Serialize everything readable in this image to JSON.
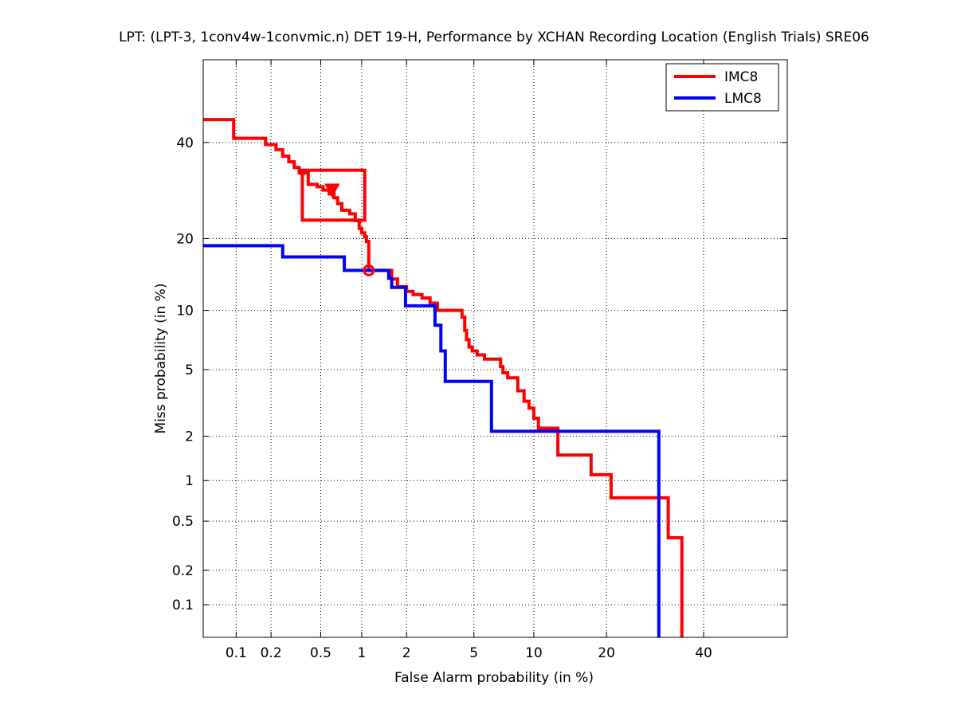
{
  "chart_data": {
    "type": "line",
    "title": "LPT: (LPT-3, 1conv4w-1convmic.n) DET 19-H,  Performance by XCHAN Recording Location (English Trials) SRE06",
    "xlabel": "False Alarm probability (in %)",
    "ylabel": "Miss probability (in %)",
    "x_scale": "probit",
    "y_scale": "probit",
    "xlim": [
      0.05,
      60
    ],
    "ylim": [
      0.05,
      60
    ],
    "grid": true,
    "legend_position": "top-right",
    "x_ticks": [
      {
        "value": 0.1,
        "label": "0.1"
      },
      {
        "value": 0.2,
        "label": "0.2"
      },
      {
        "value": 0.5,
        "label": "0.5"
      },
      {
        "value": 1,
        "label": "1"
      },
      {
        "value": 2,
        "label": "2"
      },
      {
        "value": 5,
        "label": "5"
      },
      {
        "value": 10,
        "label": "10"
      },
      {
        "value": 20,
        "label": "20"
      },
      {
        "value": 40,
        "label": "40"
      }
    ],
    "y_ticks": [
      {
        "value": 0.1,
        "label": "0.1"
      },
      {
        "value": 0.2,
        "label": "0.2"
      },
      {
        "value": 0.5,
        "label": "0.5"
      },
      {
        "value": 1,
        "label": "1"
      },
      {
        "value": 2,
        "label": "2"
      },
      {
        "value": 5,
        "label": "5"
      },
      {
        "value": 10,
        "label": "10"
      },
      {
        "value": 20,
        "label": "20"
      },
      {
        "value": 40,
        "label": "40"
      }
    ],
    "series": [
      {
        "name": "IMC8",
        "color": "#ff0000",
        "points": [
          [
            0.05,
            45.5
          ],
          [
            0.095,
            45.5
          ],
          [
            0.095,
            41.0
          ],
          [
            0.18,
            41.0
          ],
          [
            0.18,
            39.5
          ],
          [
            0.22,
            39.5
          ],
          [
            0.22,
            38.3
          ],
          [
            0.25,
            38.3
          ],
          [
            0.25,
            36.8
          ],
          [
            0.28,
            36.8
          ],
          [
            0.28,
            35.5
          ],
          [
            0.31,
            35.5
          ],
          [
            0.31,
            34.2
          ],
          [
            0.34,
            34.2
          ],
          [
            0.34,
            33.0
          ],
          [
            0.4,
            33.0
          ],
          [
            0.4,
            30.5
          ],
          [
            0.47,
            30.5
          ],
          [
            0.47,
            30.0
          ],
          [
            0.52,
            30.0
          ],
          [
            0.52,
            29.3
          ],
          [
            0.58,
            29.3
          ],
          [
            0.58,
            28.5
          ],
          [
            0.63,
            28.5
          ],
          [
            0.63,
            27.7
          ],
          [
            0.67,
            27.7
          ],
          [
            0.67,
            26.5
          ],
          [
            0.72,
            26.5
          ],
          [
            0.72,
            25.2
          ],
          [
            0.82,
            25.2
          ],
          [
            0.82,
            24.5
          ],
          [
            0.9,
            24.5
          ],
          [
            0.9,
            23.2
          ],
          [
            0.96,
            23.2
          ],
          [
            0.96,
            21.8
          ],
          [
            1.0,
            21.8
          ],
          [
            1.0,
            21.0
          ],
          [
            1.05,
            21.0
          ],
          [
            1.05,
            20.3
          ],
          [
            1.08,
            20.3
          ],
          [
            1.08,
            19.5
          ],
          [
            1.12,
            19.5
          ],
          [
            1.12,
            15.0
          ],
          [
            1.6,
            15.0
          ],
          [
            1.6,
            13.8
          ],
          [
            1.75,
            13.8
          ],
          [
            1.75,
            12.8
          ],
          [
            2.0,
            12.8
          ],
          [
            2.0,
            12.2
          ],
          [
            2.2,
            12.2
          ],
          [
            2.2,
            11.8
          ],
          [
            2.5,
            11.8
          ],
          [
            2.5,
            11.4
          ],
          [
            2.8,
            11.4
          ],
          [
            2.8,
            10.8
          ],
          [
            3.1,
            10.8
          ],
          [
            3.1,
            10.0
          ],
          [
            4.3,
            10.0
          ],
          [
            4.3,
            9.3
          ],
          [
            4.45,
            9.3
          ],
          [
            4.45,
            8.0
          ],
          [
            4.55,
            8.0
          ],
          [
            4.55,
            7.2
          ],
          [
            4.7,
            7.2
          ],
          [
            4.7,
            6.6
          ],
          [
            4.9,
            6.6
          ],
          [
            4.9,
            6.3
          ],
          [
            5.2,
            6.3
          ],
          [
            5.2,
            6.0
          ],
          [
            5.7,
            6.0
          ],
          [
            5.7,
            5.7
          ],
          [
            6.9,
            5.7
          ],
          [
            6.9,
            5.2
          ],
          [
            7.1,
            5.2
          ],
          [
            7.1,
            4.8
          ],
          [
            7.5,
            4.8
          ],
          [
            7.5,
            4.5
          ],
          [
            8.4,
            4.5
          ],
          [
            8.4,
            3.8
          ],
          [
            9.0,
            3.8
          ],
          [
            9.0,
            3.3
          ],
          [
            9.5,
            3.3
          ],
          [
            9.5,
            3.0
          ],
          [
            10.0,
            3.0
          ],
          [
            10.0,
            2.6
          ],
          [
            10.5,
            2.6
          ],
          [
            10.5,
            2.25
          ],
          [
            12.8,
            2.25
          ],
          [
            12.8,
            1.5
          ],
          [
            17.5,
            1.5
          ],
          [
            17.5,
            1.1
          ],
          [
            20.8,
            1.1
          ],
          [
            20.8,
            0.75
          ],
          [
            32.0,
            0.75
          ],
          [
            32.0,
            0.37
          ],
          [
            35.0,
            0.37
          ],
          [
            35.0,
            0.05
          ]
        ]
      },
      {
        "name": "LMC8",
        "color": "#0000ff",
        "points": [
          [
            0.05,
            18.8
          ],
          [
            0.25,
            18.8
          ],
          [
            0.25,
            17.0
          ],
          [
            0.75,
            17.0
          ],
          [
            0.75,
            15.0
          ],
          [
            1.53,
            15.0
          ],
          [
            1.53,
            13.9
          ],
          [
            1.6,
            13.9
          ],
          [
            1.6,
            12.7
          ],
          [
            1.97,
            12.7
          ],
          [
            1.97,
            10.5
          ],
          [
            3.0,
            10.5
          ],
          [
            3.0,
            8.5
          ],
          [
            3.25,
            8.5
          ],
          [
            3.25,
            6.3
          ],
          [
            3.45,
            6.3
          ],
          [
            3.45,
            4.3
          ],
          [
            6.2,
            4.3
          ],
          [
            6.2,
            2.15
          ],
          [
            30.0,
            2.15
          ],
          [
            30.0,
            0.05
          ]
        ]
      }
    ],
    "annotations": [
      {
        "type": "rectangle",
        "series": "IMC8",
        "x_range": [
          0.36,
          1.05
        ],
        "y_range": [
          23.3,
          33.6
        ]
      },
      {
        "type": "triangle-marker",
        "series": "IMC8",
        "x": 0.61,
        "y": 29.3
      },
      {
        "type": "circle-marker",
        "series": "IMC8",
        "x": 1.12,
        "y": 15.0
      }
    ]
  }
}
